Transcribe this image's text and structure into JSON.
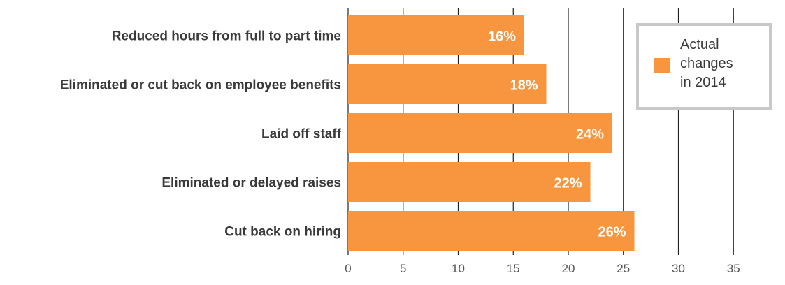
{
  "chart_data": {
    "type": "bar",
    "orientation": "horizontal",
    "categories": [
      "Reduced hours from full to part time",
      "Eliminated or cut back on employee benefits",
      "Laid off staff",
      "Eliminated or delayed raises",
      "Cut back on hiring"
    ],
    "series": [
      {
        "name": "Actual changes in 2014",
        "legend_lines": [
          "Actual",
          "changes",
          "in 2014"
        ],
        "values": [
          16,
          18,
          24,
          22,
          26
        ],
        "data_labels": [
          "16%",
          "18%",
          "24%",
          "22%",
          "26%"
        ],
        "color": "#f7963f"
      }
    ],
    "xlim": [
      0,
      39
    ],
    "xticks": [
      0,
      5,
      10,
      15,
      20,
      25,
      30,
      35
    ],
    "tick_labels": [
      "0",
      "5",
      "10",
      "15",
      "20",
      "25",
      "30",
      "35"
    ],
    "title": "",
    "xlabel": "",
    "ylabel": "",
    "grid": "vertical",
    "legend_position": "top-right",
    "colors": {
      "bar": "#f7963f",
      "gridline": "#222222",
      "legend_border": "#c8c8c8",
      "category_text": "#3a3a3a",
      "tick_text": "#555555",
      "data_label_text": "#ffffff",
      "baseline_accent": "#5b9a9a"
    }
  }
}
